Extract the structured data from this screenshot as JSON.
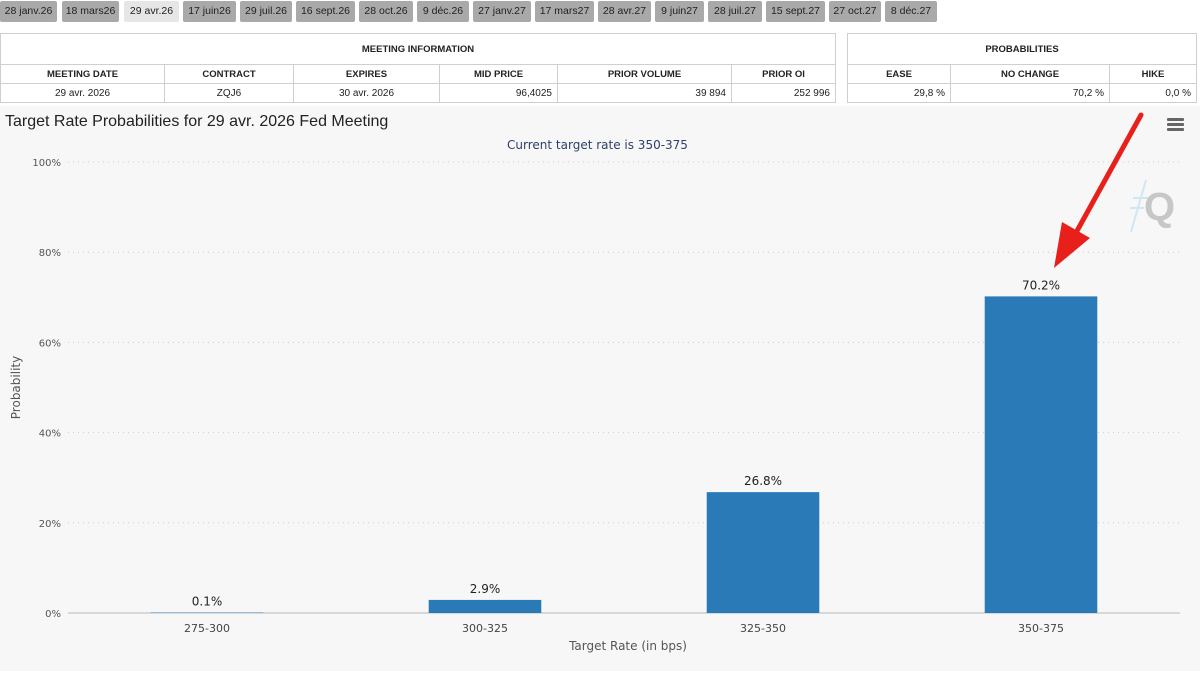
{
  "tabs": [
    {
      "label": "28 janv.26",
      "active": false
    },
    {
      "label": "18 mars26",
      "active": false
    },
    {
      "label": "29 avr.26",
      "active": true
    },
    {
      "label": "17 juin26",
      "active": false
    },
    {
      "label": "29 juil.26",
      "active": false
    },
    {
      "label": "16 sept.26",
      "active": false
    },
    {
      "label": "28 oct.26",
      "active": false
    },
    {
      "label": "9 déc.26",
      "active": false
    },
    {
      "label": "27 janv.27",
      "active": false
    },
    {
      "label": "17 mars27",
      "active": false
    },
    {
      "label": "28 avr.27",
      "active": false
    },
    {
      "label": "9 juin27",
      "active": false
    },
    {
      "label": "28 juil.27",
      "active": false
    },
    {
      "label": "15 sept.27",
      "active": false
    },
    {
      "label": "27 oct.27",
      "active": false
    },
    {
      "label": "8 déc.27",
      "active": false
    }
  ],
  "meeting_info": {
    "title": "MEETING INFORMATION",
    "headers": [
      "MEETING DATE",
      "CONTRACT",
      "EXPIRES",
      "MID PRICE",
      "PRIOR VOLUME",
      "PRIOR OI"
    ],
    "row": {
      "meeting_date": "29 avr. 2026",
      "contract": "ZQJ6",
      "expires": "30 avr. 2026",
      "mid_price": "96,4025",
      "prior_volume": "39 894",
      "prior_oi": "252 996"
    }
  },
  "probabilities": {
    "title": "PROBABILITIES",
    "headers": [
      "EASE",
      "NO CHANGE",
      "HIKE"
    ],
    "row": {
      "ease": "29,8 %",
      "no_change": "70,2 %",
      "hike": "0,0 %"
    }
  },
  "menu_icon": "hamburger-menu-icon",
  "logo_text": "Q",
  "colors": {
    "bar": "#2a7ab8",
    "arrow": "#e8201c",
    "subtitle": "#2d3f6c"
  },
  "chart_data": {
    "type": "bar",
    "title": "Target Rate Probabilities for 29 avr. 2026 Fed Meeting",
    "subtitle": "Current target rate is 350-375",
    "categories": [
      "275-300",
      "300-325",
      "325-350",
      "350-375"
    ],
    "values": [
      0.1,
      2.9,
      26.8,
      70.2
    ],
    "data_labels": [
      "0.1%",
      "2.9%",
      "26.8%",
      "70.2%"
    ],
    "xlabel": "Target Rate (in bps)",
    "ylabel": "Probability",
    "ylim": [
      0,
      100
    ],
    "yticks": [
      0,
      20,
      40,
      60,
      80,
      100
    ],
    "ytick_labels": [
      "0%",
      "20%",
      "40%",
      "60%",
      "80%",
      "100%"
    ],
    "grid": true,
    "annotation": "arrow pointing at 350-375 bar"
  }
}
